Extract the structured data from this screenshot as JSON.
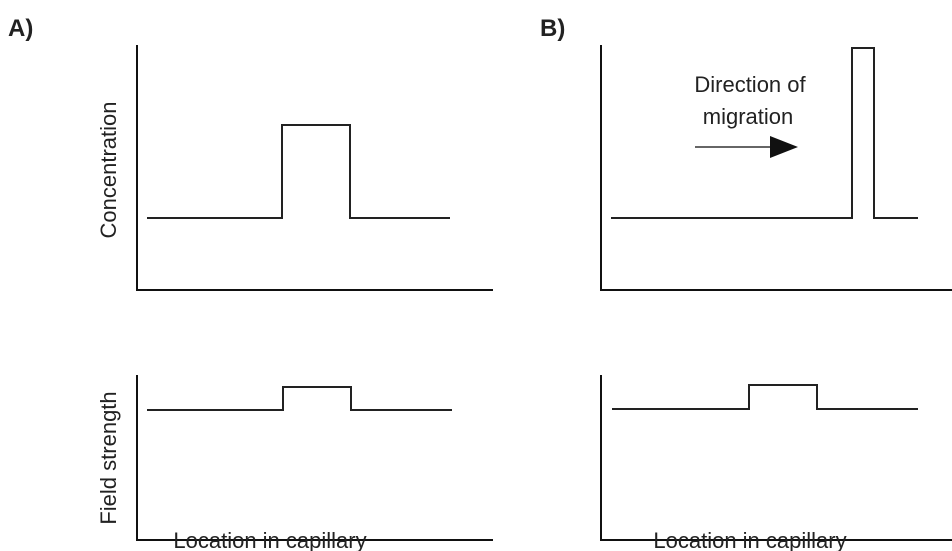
{
  "panels": [
    {
      "label": "A)",
      "y_label_top": "Concentration",
      "y_label_bottom": "Field strength",
      "x_label": "Location in capillary"
    },
    {
      "label": "B)",
      "annotation": [
        "Direction of",
        "migration"
      ],
      "x_label": "Location in capillary"
    }
  ]
}
